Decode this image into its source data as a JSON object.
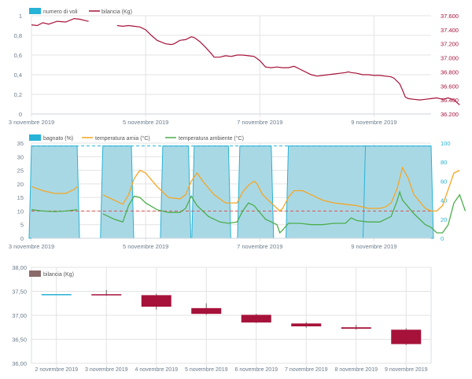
{
  "colors": {
    "voli": "#26b3d6",
    "voli_fill": "#9fd6e4",
    "bilancia_line": "#a6123a",
    "bagnato": "#26b3d6",
    "bagnato_fill": "#a9d8e5",
    "temp_arnia": "#f5a623",
    "temp_ambiente": "#4cae4c",
    "candle": "#a6123a",
    "candle_legend": "#8a6a6a",
    "grid": "#e3e3e3",
    "axis_text": "#6b7c8c",
    "right_axis_text": "#a6123a",
    "right_axis2_text": "#26b3d6",
    "ref_red": "#d9534f"
  },
  "chart_data": [
    {
      "type": "line",
      "legend": [
        {
          "name": "numero di voli",
          "kind": "bar"
        },
        {
          "name": "bilancia (Kg)",
          "kind": "line"
        }
      ],
      "x_ticks": [
        {
          "label": "3 novembre 2019",
          "x": 0
        },
        {
          "label": "5 novembre 2019",
          "x": 2
        },
        {
          "label": "7 novembre 2019",
          "x": 4
        },
        {
          "label": "9 novembre 2019",
          "x": 6
        }
      ],
      "xlim": [
        0,
        7.0
      ],
      "y_left": {
        "ticks": [
          "0",
          "0,2",
          "0,4",
          "0,6",
          "0,8",
          "1"
        ],
        "lim": [
          0,
          1
        ]
      },
      "y_right": {
        "ticks": [
          "36.200",
          "36.400",
          "36.600",
          "36.800",
          "37.000",
          "37.200",
          "37.400",
          "37.600"
        ],
        "lim": [
          36200,
          37600
        ]
      },
      "series": [
        {
          "name": "bilancia (Kg)",
          "axis": "right",
          "segments": [
            [
              [
                0.0,
                37470
              ],
              [
                0.1,
                37460
              ],
              [
                0.2,
                37500
              ],
              [
                0.3,
                37480
              ],
              [
                0.45,
                37520
              ],
              [
                0.6,
                37510
              ],
              [
                0.75,
                37560
              ],
              [
                0.85,
                37550
              ],
              [
                0.95,
                37530
              ],
              [
                1.0,
                37520
              ]
            ],
            [
              [
                1.5,
                37460
              ],
              [
                1.6,
                37450
              ],
              [
                1.7,
                37460
              ],
              [
                1.8,
                37450
              ],
              [
                1.9,
                37440
              ],
              [
                2.0,
                37400
              ],
              [
                2.1,
                37320
              ],
              [
                2.2,
                37250
              ],
              [
                2.35,
                37200
              ],
              [
                2.45,
                37190
              ],
              [
                2.5,
                37200
              ],
              [
                2.6,
                37250
              ],
              [
                2.7,
                37260
              ],
              [
                2.8,
                37300
              ],
              [
                2.85,
                37290
              ],
              [
                2.95,
                37230
              ],
              [
                3.05,
                37150
              ],
              [
                3.15,
                37060
              ],
              [
                3.2,
                37010
              ],
              [
                3.3,
                37010
              ],
              [
                3.4,
                37030
              ],
              [
                3.5,
                37020
              ],
              [
                3.6,
                37040
              ],
              [
                3.7,
                37040
              ],
              [
                3.8,
                37030
              ],
              [
                3.9,
                37020
              ],
              [
                4.0,
                36960
              ],
              [
                4.1,
                36870
              ],
              [
                4.2,
                36860
              ],
              [
                4.3,
                36870
              ],
              [
                4.4,
                36860
              ],
              [
                4.5,
                36860
              ],
              [
                4.6,
                36880
              ],
              [
                4.65,
                36860
              ],
              [
                4.7,
                36840
              ],
              [
                4.8,
                36800
              ],
              [
                4.9,
                36760
              ],
              [
                5.0,
                36740
              ],
              [
                5.1,
                36750
              ],
              [
                5.2,
                36760
              ],
              [
                5.3,
                36770
              ],
              [
                5.4,
                36780
              ],
              [
                5.5,
                36790
              ],
              [
                5.55,
                36800
              ],
              [
                5.6,
                36790
              ],
              [
                5.7,
                36780
              ],
              [
                5.8,
                36760
              ],
              [
                5.9,
                36760
              ],
              [
                6.0,
                36750
              ],
              [
                6.1,
                36750
              ],
              [
                6.2,
                36740
              ],
              [
                6.3,
                36730
              ],
              [
                6.35,
                36710
              ],
              [
                6.45,
                36630
              ],
              [
                6.5,
                36540
              ],
              [
                6.55,
                36440
              ],
              [
                6.6,
                36420
              ],
              [
                6.7,
                36410
              ],
              [
                6.8,
                36400
              ],
              [
                6.9,
                36410
              ],
              [
                7.0,
                36420
              ],
              [
                7.1,
                36430
              ],
              [
                7.2,
                36410
              ],
              [
                7.3,
                36430
              ],
              [
                7.4,
                36400
              ],
              [
                7.5,
                36330
              ]
            ]
          ]
        }
      ]
    },
    {
      "type": "area",
      "legend": [
        {
          "name": "bagnato (%)",
          "kind": "bar"
        },
        {
          "name": "temperatura arnia (°C)",
          "kind": "line"
        },
        {
          "name": "temperatura ambiente (°C)",
          "kind": "line"
        }
      ],
      "x_ticks": [
        {
          "label": "3 novembre 2019",
          "x": 0
        },
        {
          "label": "5 novembre 2019",
          "x": 2
        },
        {
          "label": "7 novembre 2019",
          "x": 4
        },
        {
          "label": "9 novembre 2019",
          "x": 6
        }
      ],
      "xlim": [
        0,
        7.0
      ],
      "y_left": {
        "ticks": [
          "0",
          "5",
          "10",
          "15",
          "20",
          "25",
          "30",
          "35"
        ],
        "lim": [
          0,
          35
        ]
      },
      "y_right": {
        "ticks": [
          "0",
          "20",
          "40",
          "60",
          "80",
          "100"
        ],
        "lim": [
          0,
          100
        ]
      },
      "bagnato_bands": [
        [
          0.0,
          0.8
        ],
        [
          1.25,
          1.75
        ],
        [
          2.3,
          2.75
        ],
        [
          2.85,
          3.45
        ],
        [
          3.65,
          4.2
        ],
        [
          4.5,
          5.9
        ],
        [
          5.85,
          7.0
        ]
      ],
      "series": [
        {
          "name": "temperatura arnia (°C)",
          "axis": "left",
          "segments": [
            [
              [
                0.0,
                19
              ],
              [
                0.2,
                17.5
              ],
              [
                0.4,
                16.5
              ],
              [
                0.6,
                16.5
              ],
              [
                0.75,
                18
              ],
              [
                0.8,
                19
              ]
            ],
            [
              [
                1.25,
                16
              ],
              [
                1.45,
                14
              ],
              [
                1.6,
                12.5
              ],
              [
                1.7,
                16
              ],
              [
                1.8,
                22
              ],
              [
                1.9,
                25
              ],
              [
                2.0,
                24
              ],
              [
                2.2,
                19
              ],
              [
                2.4,
                15
              ],
              [
                2.6,
                14.5
              ],
              [
                2.7,
                16
              ],
              [
                2.8,
                21
              ],
              [
                2.9,
                24
              ],
              [
                3.0,
                21
              ],
              [
                3.2,
                16
              ],
              [
                3.4,
                13
              ],
              [
                3.6,
                13
              ],
              [
                3.7,
                17
              ],
              [
                3.8,
                19.5
              ],
              [
                3.9,
                21
              ],
              [
                3.95,
                20
              ],
              [
                4.05,
                16
              ],
              [
                4.2,
                13
              ],
              [
                4.3,
                11
              ],
              [
                4.35,
                10
              ],
              [
                4.4,
                11
              ],
              [
                4.5,
                15
              ],
              [
                4.6,
                17.5
              ],
              [
                4.75,
                17.5
              ],
              [
                4.9,
                16
              ],
              [
                5.1,
                14
              ],
              [
                5.3,
                13
              ],
              [
                5.5,
                12.5
              ],
              [
                5.7,
                12
              ],
              [
                5.9,
                11
              ],
              [
                6.1,
                11
              ],
              [
                6.2,
                11.5
              ],
              [
                6.3,
                13
              ],
              [
                6.4,
                18
              ],
              [
                6.5,
                26
              ],
              [
                6.6,
                22
              ],
              [
                6.7,
                16
              ],
              [
                6.9,
                11
              ],
              [
                7.0,
                10
              ],
              [
                7.1,
                10
              ],
              [
                7.2,
                12
              ],
              [
                7.3,
                18
              ],
              [
                7.4,
                24
              ],
              [
                7.5,
                25
              ]
            ]
          ]
        },
        {
          "name": "temperatura ambiente (°C)",
          "axis": "left",
          "segments": [
            [
              [
                0.0,
                10.5
              ],
              [
                0.2,
                10
              ],
              [
                0.4,
                9.8
              ],
              [
                0.6,
                10
              ],
              [
                0.8,
                10.5
              ]
            ],
            [
              [
                1.25,
                9
              ],
              [
                1.45,
                7
              ],
              [
                1.6,
                6
              ],
              [
                1.7,
                12
              ],
              [
                1.8,
                15.5
              ],
              [
                1.9,
                15
              ],
              [
                2.0,
                13
              ],
              [
                2.2,
                10.5
              ],
              [
                2.4,
                9.5
              ],
              [
                2.6,
                9.5
              ],
              [
                2.7,
                11
              ],
              [
                2.8,
                15.5
              ],
              [
                2.9,
                12
              ],
              [
                3.1,
                8
              ],
              [
                3.3,
                6
              ],
              [
                3.45,
                5.5
              ],
              [
                3.6,
                6
              ],
              [
                3.7,
                10
              ],
              [
                3.8,
                13
              ],
              [
                3.9,
                12
              ],
              [
                4.1,
                7
              ],
              [
                4.3,
                5
              ],
              [
                4.35,
                2
              ],
              [
                4.4,
                3
              ],
              [
                4.5,
                5.5
              ],
              [
                4.7,
                5.5
              ],
              [
                4.9,
                5
              ],
              [
                5.1,
                5
              ],
              [
                5.3,
                5.5
              ],
              [
                5.5,
                5.5
              ],
              [
                5.6,
                7.5
              ],
              [
                5.7,
                6.5
              ],
              [
                5.9,
                6
              ],
              [
                6.1,
                6
              ],
              [
                6.3,
                8
              ],
              [
                6.4,
                13.5
              ],
              [
                6.45,
                17
              ],
              [
                6.5,
                14
              ],
              [
                6.7,
                9
              ],
              [
                6.9,
                5
              ],
              [
                7.0,
                4
              ],
              [
                7.1,
                2
              ],
              [
                7.2,
                2
              ],
              [
                7.3,
                5
              ],
              [
                7.4,
                13
              ],
              [
                7.5,
                16
              ],
              [
                7.6,
                10
              ]
            ]
          ]
        }
      ],
      "ref_lines": [
        {
          "axis": "left",
          "value": 10,
          "color": "ref_red"
        },
        {
          "axis": "right",
          "value": 97,
          "color": "bagnato"
        }
      ]
    },
    {
      "type": "candlestick",
      "legend": [
        {
          "name": "bilancia (Kg)"
        }
      ],
      "categories": [
        "2 novembre 2019",
        "3 novembre 2019",
        "4 novembre 2019",
        "5 novembre 2019",
        "6 novembre 2019",
        "7 novembre 2019",
        "8 novembre 2019",
        "9 novembre 2019"
      ],
      "y_ticks": [
        "36,00",
        "36,50",
        "37,00",
        "37,50",
        "38,00"
      ],
      "ylim": [
        36.0,
        38.0
      ],
      "candles": [
        {
          "open": 37.43,
          "close": 37.43,
          "high": 37.43,
          "low": 37.43,
          "flat": true
        },
        {
          "open": 37.44,
          "close": 37.42,
          "high": 37.53,
          "low": 37.41
        },
        {
          "open": 37.42,
          "close": 37.18,
          "high": 37.45,
          "low": 37.12
        },
        {
          "open": 37.15,
          "close": 37.03,
          "high": 37.25,
          "low": 37.01
        },
        {
          "open": 37.01,
          "close": 36.85,
          "high": 37.03,
          "low": 36.84
        },
        {
          "open": 36.83,
          "close": 36.77,
          "high": 36.86,
          "low": 36.74
        },
        {
          "open": 36.75,
          "close": 36.72,
          "high": 36.8,
          "low": 36.7
        },
        {
          "open": 36.7,
          "close": 36.4,
          "high": 36.73,
          "low": 36.38
        }
      ]
    }
  ]
}
